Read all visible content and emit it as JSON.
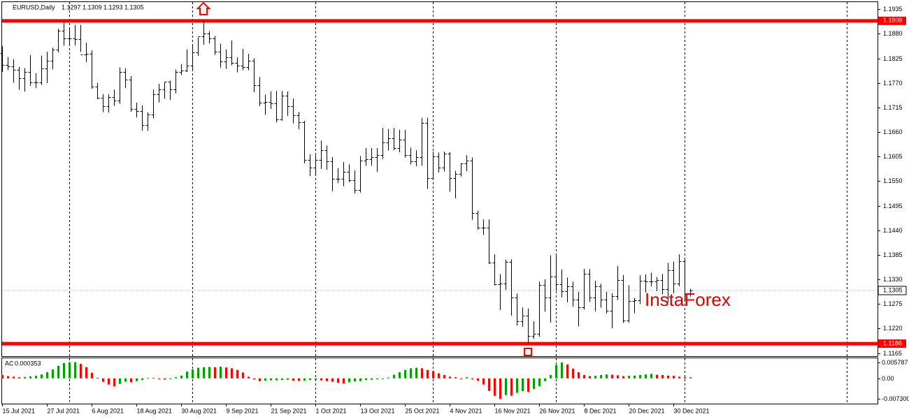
{
  "chart_data": {
    "type": "ohlc",
    "title": "EURUSD,Daily",
    "categories": [
      "15 Jul 2021",
      null,
      null,
      null,
      null,
      null,
      null,
      null,
      "27 Jul 2021",
      null,
      null,
      null,
      null,
      null,
      null,
      null,
      "6 Aug 2021",
      null,
      null,
      null,
      null,
      null,
      null,
      null,
      "18 Aug 2021",
      null,
      null,
      null,
      null,
      null,
      null,
      null,
      "30 Aug 2021",
      null,
      null,
      null,
      null,
      null,
      null,
      null,
      "9 Sep 2021",
      null,
      null,
      null,
      null,
      null,
      null,
      null,
      "21 Sep 2021",
      null,
      null,
      null,
      null,
      null,
      null,
      null,
      "1 Oct 2021",
      null,
      null,
      null,
      null,
      null,
      null,
      null,
      "13 Oct 2021",
      null,
      null,
      null,
      null,
      null,
      null,
      null,
      "25 Oct 2021",
      null,
      null,
      null,
      null,
      null,
      null,
      null,
      "4 Nov 2021",
      null,
      null,
      null,
      null,
      null,
      null,
      null,
      "16 Nov 2021",
      null,
      null,
      null,
      null,
      null,
      null,
      null,
      "26 Nov 2021",
      null,
      null,
      null,
      null,
      null,
      null,
      null,
      "8 Dec 2021",
      null,
      null,
      null,
      null,
      null,
      null,
      null,
      "20 Dec 2021",
      null,
      null,
      null,
      null,
      null,
      null,
      null,
      "30 Dec 2021",
      null,
      null,
      null
    ],
    "open": [
      1.1837,
      1.1811,
      1.1807,
      1.18,
      1.178,
      1.1795,
      1.1771,
      1.1771,
      1.1802,
      1.1819,
      1.1845,
      1.1887,
      1.187,
      1.1869,
      1.1868,
      1.1834,
      1.1835,
      1.1762,
      1.1737,
      1.1718,
      1.1738,
      1.173,
      1.1795,
      1.1778,
      1.1712,
      1.1707,
      1.1675,
      1.1699,
      1.1745,
      1.1756,
      1.1772,
      1.1755,
      1.1795,
      1.1797,
      1.1809,
      1.1838,
      1.1875,
      1.188,
      1.187,
      1.184,
      1.1818,
      1.1828,
      1.1815,
      1.1808,
      1.1805,
      1.182,
      1.1765,
      1.1725,
      1.1728,
      1.1724,
      1.1688,
      1.1741,
      1.1718,
      1.1697,
      1.1682,
      1.1597,
      1.158,
      1.1597,
      1.162,
      1.1595,
      1.1555,
      1.1555,
      1.1571,
      1.1552,
      1.1531,
      1.1596,
      1.1599,
      1.1603,
      1.1609,
      1.1637,
      1.1646,
      1.1624,
      1.1643,
      1.1608,
      1.1595,
      1.1603,
      1.1681,
      1.1557,
      1.1606,
      1.158,
      1.1611,
      1.1557,
      1.1567,
      1.159,
      1.1596,
      1.1479,
      1.1446,
      1.1446,
      1.1367,
      1.1319,
      1.132,
      1.1369,
      1.129,
      1.1236,
      1.1248,
      1.1203,
      1.1208,
      1.1318,
      1.129,
      1.1337,
      1.1319,
      1.1303,
      1.1315,
      1.1285,
      1.1267,
      1.1342,
      1.1289,
      1.1315,
      1.1284,
      1.126,
      1.1292,
      1.1329,
      1.1237,
      1.1281,
      1.1283,
      1.1327,
      1.1326,
      1.1326,
      1.1328,
      1.1308,
      1.1351,
      1.132,
      1.137,
      1.1297
    ],
    "high": [
      1.1852,
      1.1828,
      1.1823,
      1.1806,
      1.1803,
      1.1832,
      1.1792,
      1.1831,
      1.184,
      1.1849,
      1.1891,
      1.1909,
      1.1892,
      1.19,
      1.19,
      1.186,
      1.1843,
      1.177,
      1.1745,
      1.1745,
      1.1755,
      1.1805,
      1.1803,
      1.1785,
      1.1726,
      1.172,
      1.1704,
      1.1755,
      1.1768,
      1.1772,
      1.1775,
      1.18,
      1.1812,
      1.1845,
      1.1857,
      1.1872,
      1.1909,
      1.1886,
      1.1875,
      1.1858,
      1.1845,
      1.1865,
      1.1827,
      1.1846,
      1.1835,
      1.1825,
      1.1783,
      1.1744,
      1.1751,
      1.1752,
      1.1752,
      1.1751,
      1.1735,
      1.1705,
      1.1685,
      1.161,
      1.1608,
      1.1641,
      1.163,
      1.1604,
      1.1579,
      1.1593,
      1.1588,
      1.1574,
      1.1606,
      1.1624,
      1.1624,
      1.1624,
      1.1669,
      1.1667,
      1.1669,
      1.1665,
      1.1665,
      1.1625,
      1.1619,
      1.1692,
      1.1692,
      1.1616,
      1.1614,
      1.1616,
      1.1615,
      1.1573,
      1.159,
      1.1608,
      1.1603,
      1.1484,
      1.1464,
      1.1464,
      1.1386,
      1.1342,
      1.1374,
      1.1375,
      1.1298,
      1.1267,
      1.1265,
      1.1236,
      1.1325,
      1.133,
      1.1384,
      1.1383,
      1.1352,
      1.1334,
      1.1325,
      1.1302,
      1.1354,
      1.1353,
      1.1327,
      1.132,
      1.1302,
      1.1299,
      1.136,
      1.134,
      1.1317,
      1.1288,
      1.1339,
      1.1341,
      1.1345,
      1.1335,
      1.1342,
      1.1367,
      1.137,
      1.1386,
      1.1378,
      1.1309
    ],
    "low": [
      1.1796,
      1.18,
      1.1772,
      1.1756,
      1.1752,
      1.1765,
      1.176,
      1.1767,
      1.1771,
      1.1802,
      1.184,
      1.1855,
      1.1858,
      1.1856,
      1.1841,
      1.1818,
      1.1758,
      1.1735,
      1.1706,
      1.1705,
      1.172,
      1.1725,
      1.176,
      1.1707,
      1.1694,
      1.1665,
      1.1664,
      1.1692,
      1.1728,
      1.1736,
      1.1733,
      1.1748,
      1.1789,
      1.1796,
      1.18,
      1.1832,
      1.1857,
      1.186,
      1.1834,
      1.1806,
      1.1803,
      1.1811,
      1.1795,
      1.18,
      1.18,
      1.1751,
      1.172,
      1.17,
      1.1713,
      1.1683,
      1.1687,
      1.1698,
      1.1681,
      1.1668,
      1.1591,
      1.1563,
      1.1567,
      1.1579,
      1.1577,
      1.1529,
      1.1547,
      1.154,
      1.1549,
      1.1524,
      1.1526,
      1.1586,
      1.1586,
      1.1572,
      1.1601,
      1.162,
      1.1621,
      1.1616,
      1.1604,
      1.1589,
      1.1585,
      1.1586,
      1.1534,
      1.1556,
      1.1571,
      1.1573,
      1.1528,
      1.1513,
      1.1562,
      1.1574,
      1.1465,
      1.1443,
      1.1431,
      1.1366,
      1.1318,
      1.1263,
      1.1308,
      1.125,
      1.1228,
      1.1225,
      1.1186,
      1.1198,
      1.1203,
      1.1259,
      1.1235,
      1.1306,
      1.1291,
      1.128,
      1.127,
      1.1226,
      1.1264,
      1.1281,
      1.126,
      1.1268,
      1.1255,
      1.1222,
      1.1285,
      1.1234,
      1.1235,
      1.1256,
      1.1276,
      1.1302,
      1.1316,
      1.1305,
      1.1298,
      1.1281,
      1.13,
      1.1316,
      1.1283,
      1.1293
    ],
    "close": [
      1.1811,
      1.1807,
      1.18,
      1.178,
      1.1795,
      1.1771,
      1.1771,
      1.1802,
      1.1819,
      1.1845,
      1.1887,
      1.187,
      1.1869,
      1.1868,
      1.1834,
      1.1835,
      1.1762,
      1.1737,
      1.1718,
      1.1738,
      1.173,
      1.1795,
      1.1778,
      1.1712,
      1.1707,
      1.1675,
      1.1699,
      1.1745,
      1.1756,
      1.1772,
      1.1755,
      1.1795,
      1.1797,
      1.1809,
      1.1838,
      1.1875,
      1.188,
      1.187,
      1.184,
      1.1818,
      1.1828,
      1.1815,
      1.1808,
      1.1805,
      1.182,
      1.1765,
      1.1725,
      1.1728,
      1.1724,
      1.1688,
      1.1741,
      1.1718,
      1.1697,
      1.1682,
      1.1597,
      1.158,
      1.1597,
      1.162,
      1.1595,
      1.1555,
      1.1555,
      1.1571,
      1.1552,
      1.1531,
      1.1596,
      1.1599,
      1.1603,
      1.1609,
      1.1637,
      1.1646,
      1.1624,
      1.1643,
      1.1608,
      1.1595,
      1.1603,
      1.1681,
      1.1557,
      1.1606,
      1.158,
      1.1611,
      1.1557,
      1.1567,
      1.159,
      1.1596,
      1.1479,
      1.1446,
      1.1446,
      1.1367,
      1.1319,
      1.132,
      1.1369,
      1.129,
      1.1236,
      1.1248,
      1.1203,
      1.1208,
      1.1318,
      1.129,
      1.1337,
      1.1319,
      1.1303,
      1.1315,
      1.1285,
      1.1267,
      1.1342,
      1.1289,
      1.1315,
      1.1284,
      1.126,
      1.1292,
      1.1329,
      1.1237,
      1.1281,
      1.1283,
      1.1327,
      1.1326,
      1.1326,
      1.1328,
      1.1308,
      1.1351,
      1.132,
      1.137,
      1.1297,
      1.1305
    ],
    "color": "#000000",
    "ylim": [
      1.1158,
      1.1951
    ],
    "yticks": [
      1.1935,
      {
        "value": 1.188,
        "label": "1.1880"
      },
      1.1825,
      {
        "value": 1.177,
        "label": "1.1770"
      },
      1.1715,
      {
        "value": 1.166,
        "label": "1.1660"
      },
      1.1605,
      {
        "value": 1.155,
        "label": "1.1550"
      },
      1.1495,
      {
        "value": 1.144,
        "label": "1.1440"
      },
      1.1385,
      {
        "value": 1.133,
        "label": "1.1330"
      },
      1.1275,
      {
        "value": 1.122,
        "label": "1.1220"
      },
      1.1165
    ],
    "levels": [
      {
        "value": 1.1909,
        "color": "#ff0000"
      },
      {
        "value": 1.1186,
        "color": "#ff0000"
      }
    ],
    "watermark": "InstaForex",
    "indicator": {
      "type": "histogram",
      "name": "AC",
      "values": [
        0.0012,
        0.0008,
        0.0006,
        0.0004,
        0.0005,
        0.0007,
        0.0009,
        0.0014,
        0.0022,
        0.0032,
        0.0045,
        0.0055,
        0.0058,
        0.0058,
        0.0052,
        0.004,
        0.002,
        0.0002,
        -0.0012,
        -0.0022,
        -0.0028,
        -0.002,
        -0.0012,
        -0.0014,
        -0.001,
        -0.0006,
        0.0001,
        0.0002,
        -0.0002,
        -0.0004,
        -0.0001,
        0.0004,
        0.001,
        0.0024,
        0.0032,
        0.0038,
        0.004,
        0.0041,
        0.004,
        0.0042,
        0.0039,
        0.0036,
        0.003,
        0.0021,
        0.0006,
        -0.0004,
        -0.001,
        -0.0008,
        -0.0007,
        -0.0007,
        -0.0006,
        -0.0005,
        -0.0008,
        -0.0009,
        -0.0008,
        -0.0006,
        -0.0005,
        -0.0007,
        -0.001,
        -0.0012,
        -0.0016,
        -0.0018,
        -0.0014,
        -0.0011,
        -0.001,
        -0.0006,
        -0.0005,
        -0.0003,
        -0.0001,
        0.0003,
        0.0013,
        0.0022,
        0.003,
        0.0036,
        0.0038,
        0.0036,
        0.003,
        0.0026,
        0.0018,
        0.0012,
        0.0006,
        0.0004,
        0.0,
        0.0004,
        -0.0003,
        -0.0008,
        -0.0022,
        -0.0045,
        -0.0062,
        -0.0073,
        -0.006,
        -0.0062,
        -0.0052,
        -0.0046,
        -0.0048,
        -0.0038,
        -0.0028,
        -0.001,
        0.0012,
        0.0048,
        0.0057,
        0.005,
        0.0035,
        0.0022,
        0.0012,
        0.0008,
        0.0009,
        0.0012,
        0.0014,
        0.0013,
        0.0011,
        0.0008,
        0.0009,
        0.001,
        0.0012,
        0.0014,
        0.0016,
        0.0013,
        0.0012,
        0.001,
        0.0009,
        0.0006,
        0.0004,
        0.000353
      ],
      "up_color": "#00a000",
      "down_color": "#ff0000",
      "ylim": [
        -0.00906,
        0.0072
      ],
      "yticks": [
        0.005787,
        {
          "value": 0,
          "label": "0.00"
        },
        {
          "value": -0.0073,
          "label": "-0.007300"
        }
      ]
    }
  }
}
